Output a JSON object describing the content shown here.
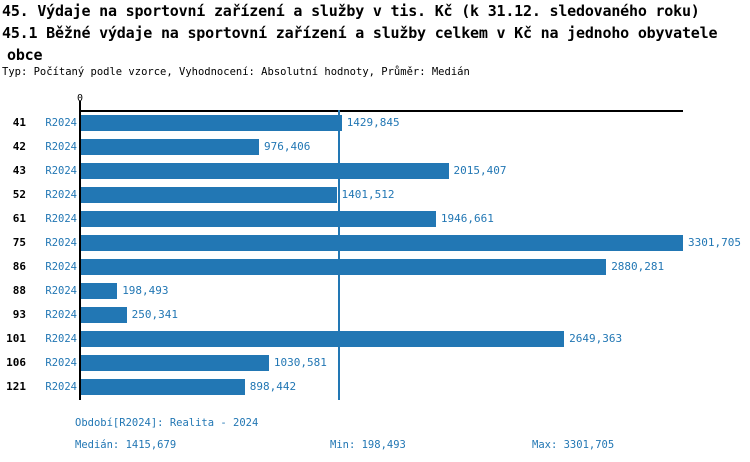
{
  "header": {
    "title_line1": "45. Výdaje na sportovní zařízení a služby v tis. Kč (k 31.12. sledovaného roku)",
    "title_line2": "45.1 Běžné výdaje na sportovní zařízení a služby celkem v Kč na jednoho obyvatele",
    "title_line3": "obce",
    "meta_line": "Typ: Počítaný podle vzorce, Vyhodnocení: Absolutní hodnoty, Průměr: Medián"
  },
  "chart_data": {
    "type": "bar",
    "orientation": "horizontal",
    "title": "45.1 Běžné výdaje na sportovní zařízení a služby celkem v Kč na jednoho obyvatele obce",
    "categories": [
      "41",
      "42",
      "43",
      "52",
      "61",
      "75",
      "86",
      "88",
      "93",
      "101",
      "106",
      "121"
    ],
    "series": [
      {
        "name": "R2024",
        "values": [
          1429.845,
          976.406,
          2015.407,
          1401.512,
          1946.661,
          3301.705,
          2880.281,
          198.493,
          250.341,
          2649.363,
          1030.581,
          898.442
        ],
        "value_labels": [
          "1429,845",
          "976,406",
          "2015,407",
          "1401,512",
          "1946,661",
          "3301,705",
          "2880,281",
          "198,493",
          "250,341",
          "2649,363",
          "1030,581",
          "898,442"
        ]
      }
    ],
    "xlim": [
      0,
      3301.705
    ],
    "x_tick_labels": [
      "0"
    ],
    "median_value": 1415.679,
    "grid": false,
    "legend_position": "none",
    "bar_color": "#2277b4",
    "median_line_color": "#2277b4",
    "text_color": "#2277b4",
    "axis_color": "#000000"
  },
  "footer": {
    "period_line": "Období[R2024]: Realita - 2024",
    "median_label": "Medián: 1415,679",
    "min_label": "Min: 198,493",
    "max_label": "Max: 3301,705"
  }
}
